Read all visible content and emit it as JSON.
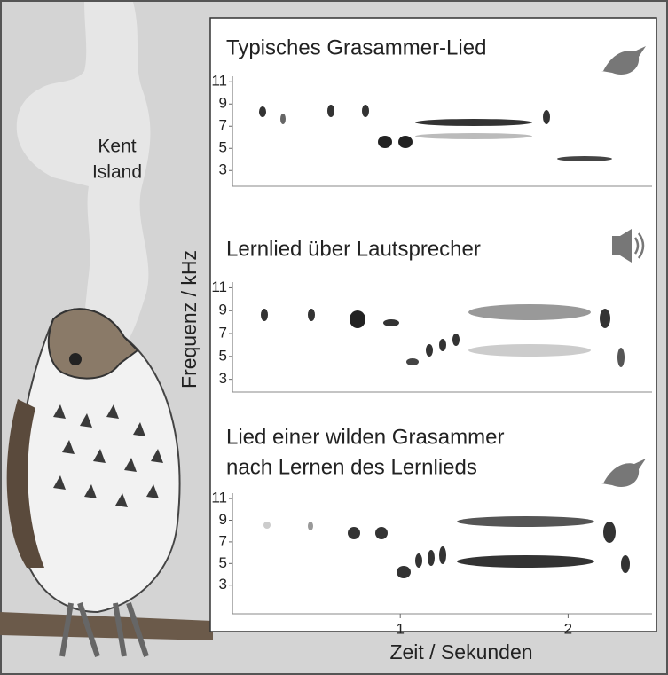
{
  "map_label": [
    "Kent",
    "Island"
  ],
  "y_axis_label": "Frequenz / kHz",
  "x_axis_label": "Zeit / Sekunden",
  "chart_data": [
    {
      "type": "spectrogram",
      "title": [
        "Typisches Grasammer-Lied"
      ],
      "ylim": [
        1.5,
        11.5
      ],
      "yticks": [
        3,
        5,
        7,
        9,
        11
      ]
    },
    {
      "type": "spectrogram",
      "title": [
        "Lernlied über Lautsprecher"
      ],
      "ylim": [
        1.5,
        11.5
      ],
      "yticks": [
        3,
        5,
        7,
        9,
        11
      ]
    },
    {
      "type": "spectrogram",
      "title": [
        "Lied einer wilden Grasammer",
        "nach Lernen des Lernlieds"
      ],
      "ylim": [
        1.5,
        11.5
      ],
      "yticks": [
        3,
        5,
        7,
        9,
        11
      ],
      "xlim": [
        0,
        2.5
      ],
      "xticks": [
        1,
        2
      ]
    }
  ]
}
